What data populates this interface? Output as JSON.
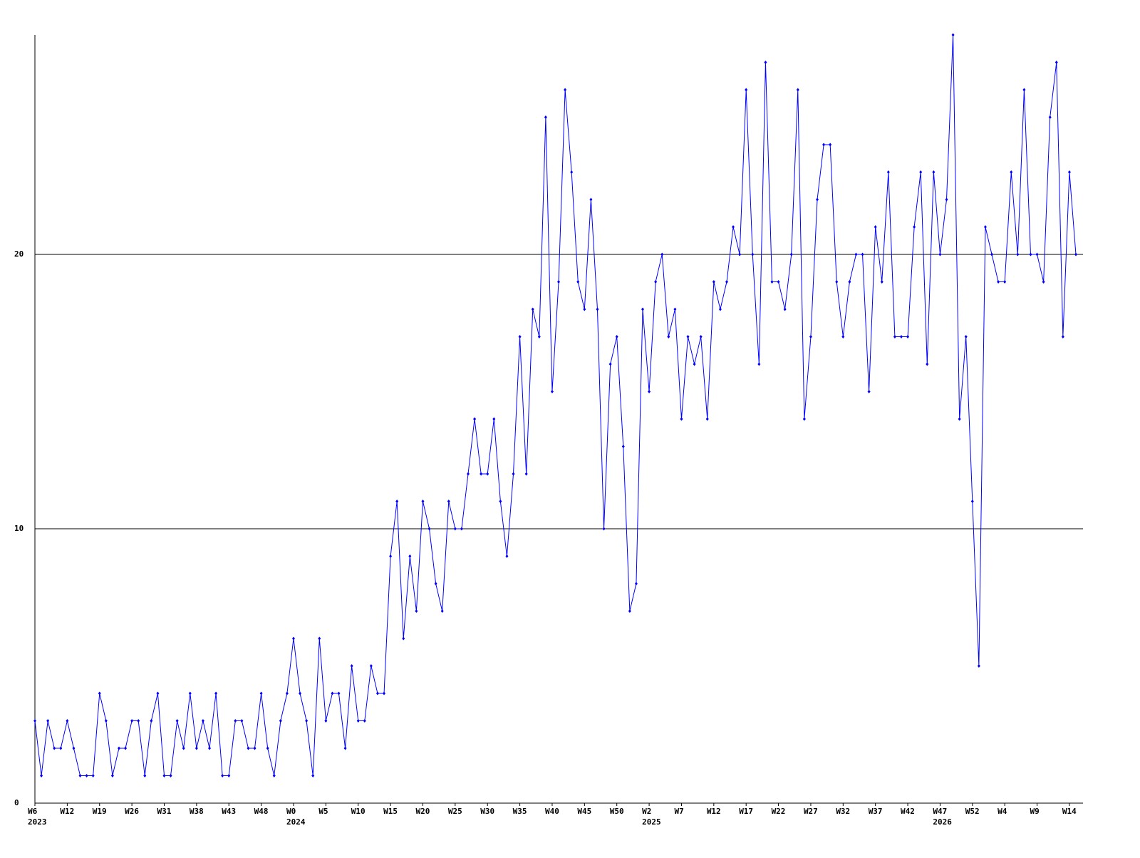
{
  "chart_data": {
    "type": "line",
    "categories": [
      "W6",
      null,
      null,
      null,
      null,
      "W12",
      null,
      null,
      null,
      null,
      "W19",
      null,
      null,
      null,
      null,
      "W26",
      null,
      null,
      null,
      null,
      "W31",
      null,
      null,
      null,
      null,
      "W38",
      null,
      null,
      null,
      null,
      "W43",
      null,
      null,
      null,
      null,
      "W48",
      null,
      null,
      null,
      null,
      "W0",
      null,
      null,
      null,
      null,
      "W5",
      null,
      null,
      null,
      null,
      "W10",
      null,
      null,
      null,
      null,
      "W15",
      null,
      null,
      null,
      null,
      "W20",
      null,
      null,
      null,
      null,
      "W25",
      null,
      null,
      null,
      null,
      "W30",
      null,
      null,
      null,
      null,
      "W35",
      null,
      null,
      null,
      null,
      "W40",
      null,
      null,
      null,
      null,
      "W45",
      null,
      null,
      null,
      null,
      "W50",
      null,
      null,
      null,
      null,
      "W2",
      null,
      null,
      null,
      null,
      "W7",
      null,
      null,
      null,
      null,
      "W12",
      null,
      null,
      null,
      null,
      "W17",
      null,
      null,
      null,
      null,
      "W22",
      null,
      null,
      null,
      null,
      "W27",
      null,
      null,
      null,
      null,
      "W32",
      null,
      null,
      null,
      null,
      "W37",
      null,
      null,
      null,
      null,
      "W42",
      null,
      null,
      null,
      null,
      "W47",
      null,
      null,
      null,
      null,
      "W52",
      null,
      null,
      null,
      null,
      "W4",
      null,
      null,
      null,
      null,
      "W9",
      null,
      null,
      null,
      null,
      "W14",
      null
    ],
    "years": [
      "2023",
      null,
      null,
      null,
      null,
      null,
      null,
      null,
      null,
      null,
      null,
      null,
      null,
      null,
      null,
      null,
      null,
      null,
      null,
      null,
      null,
      null,
      null,
      null,
      null,
      null,
      null,
      null,
      null,
      null,
      null,
      null,
      null,
      null,
      null,
      null,
      null,
      null,
      null,
      null,
      "2024",
      null,
      null,
      null,
      null,
      null,
      null,
      null,
      null,
      null,
      null,
      null,
      null,
      null,
      null,
      null,
      null,
      null,
      null,
      null,
      null,
      null,
      null,
      null,
      null,
      null,
      null,
      null,
      null,
      null,
      null,
      null,
      null,
      null,
      null,
      null,
      null,
      null,
      null,
      null,
      null,
      null,
      null,
      null,
      null,
      null,
      null,
      null,
      null,
      null,
      null,
      null,
      null,
      null,
      null,
      "2025",
      null,
      null,
      null,
      null,
      null,
      null,
      null,
      null,
      null,
      null,
      null,
      null,
      null,
      null,
      null,
      null,
      null,
      null,
      null,
      null,
      null,
      null,
      null,
      null,
      null,
      null,
      null,
      null,
      null,
      null,
      null,
      null,
      null,
      null,
      null,
      null,
      null,
      null,
      null,
      null,
      null,
      null,
      null,
      null,
      "2026",
      null,
      null,
      null,
      null,
      null,
      null,
      null,
      null,
      null,
      null,
      null,
      null,
      null,
      null,
      null,
      null
    ],
    "values": [
      3,
      1,
      3,
      2,
      2,
      3,
      2,
      1,
      1,
      1,
      4,
      3,
      1,
      2,
      2,
      3,
      3,
      1,
      3,
      4,
      1,
      1,
      3,
      2,
      4,
      2,
      3,
      2,
      4,
      1,
      1,
      3,
      3,
      2,
      2,
      4,
      2,
      1,
      3,
      4,
      6,
      4,
      3,
      1,
      6,
      3,
      4,
      4,
      2,
      5,
      3,
      3,
      5,
      4,
      4,
      9,
      11,
      6,
      9,
      7,
      11,
      10,
      8,
      7,
      11,
      10,
      10,
      12,
      14,
      12,
      12,
      14,
      11,
      9,
      12,
      17,
      12,
      18,
      17,
      25,
      15,
      19,
      26,
      23,
      19,
      18,
      22,
      18,
      10,
      16,
      17,
      13,
      7,
      8,
      18,
      15,
      19,
      20,
      17,
      18,
      14,
      17,
      16,
      17,
      14,
      19,
      18,
      19,
      21,
      20,
      26,
      20,
      16,
      27,
      19,
      19,
      18,
      20,
      26,
      14,
      17,
      22,
      24,
      24,
      19,
      17,
      19,
      20,
      20,
      15,
      21,
      19,
      23,
      17,
      17,
      17,
      21,
      23,
      16,
      23,
      20,
      22,
      28,
      14,
      17,
      11,
      5,
      21,
      20,
      19,
      19,
      23,
      20,
      26,
      20,
      20,
      19,
      25,
      27,
      17,
      23,
      20
    ],
    "color": "#0000ff",
    "ylim": [
      0,
      28
    ],
    "yticks": [
      0,
      10,
      20
    ],
    "grid": true
  }
}
